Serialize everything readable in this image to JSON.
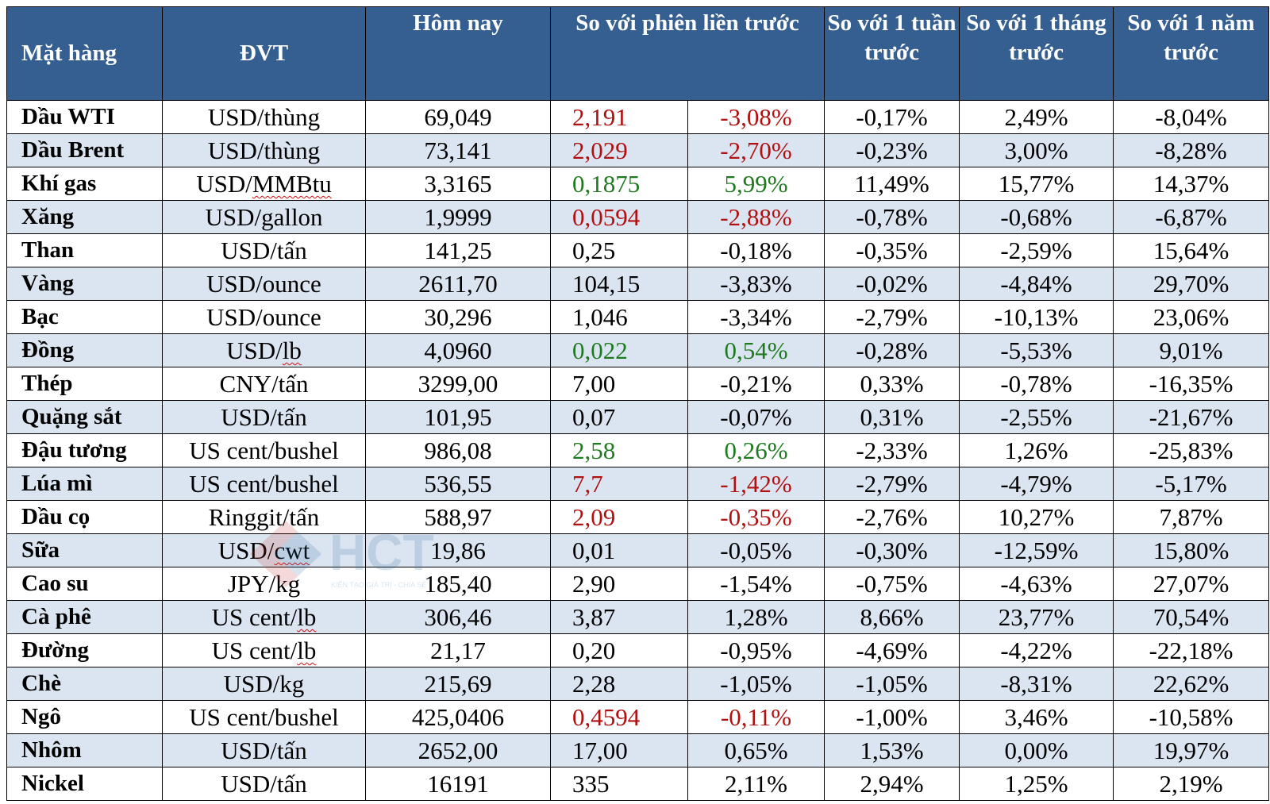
{
  "headers": {
    "commodity": "Mặt hàng",
    "unit": "ĐVT",
    "today": "Hôm nay",
    "vs_prev_session": "So với phiên liền trước",
    "vs_week": "So với 1 tuần trước",
    "vs_month": "So với 1 tháng trước",
    "vs_year": "So với 1 năm trước"
  },
  "colors": {
    "header_bg": "#365f91",
    "alt_row_bg": "#dbe5f1",
    "increase": "#1f7a1f",
    "decrease": "#b01010"
  },
  "watermark": {
    "text": "HCT",
    "tagline": "KIẾN TẠO GIÁ TRỊ - CHIA SẺ"
  },
  "rows": [
    {
      "name": "Dầu WTI",
      "unit": "USD/thùng",
      "today": "69,049",
      "change": "2,191",
      "change_pct": "-3,08%",
      "week": "-0,17%",
      "month": "2,49%",
      "year": "-8,04%",
      "trend": "neg"
    },
    {
      "name": "Dầu Brent",
      "unit": "USD/thùng",
      "today": "73,141",
      "change": "2,029",
      "change_pct": "-2,70%",
      "week": "-0,23%",
      "month": "3,00%",
      "year": "-8,28%",
      "trend": "neg"
    },
    {
      "name": "Khí gas",
      "unit": "USD/MMBtu",
      "today": "3,3165",
      "change": "0,1875",
      "change_pct": "5,99%",
      "week": "11,49%",
      "month": "15,77%",
      "year": "14,37%",
      "trend": "pos"
    },
    {
      "name": "Xăng",
      "unit": "USD/gallon",
      "today": "1,9999",
      "change": "0,0594",
      "change_pct": "-2,88%",
      "week": "-0,78%",
      "month": "-0,68%",
      "year": "-6,87%",
      "trend": "neg"
    },
    {
      "name": "Than",
      "unit": "USD/tấn",
      "today": "141,25",
      "change": "0,25",
      "change_pct": "-0,18%",
      "week": "-0,35%",
      "month": "-2,59%",
      "year": "15,64%",
      "trend": ""
    },
    {
      "name": "Vàng",
      "unit": "USD/ounce",
      "today": "2611,70",
      "change": "104,15",
      "change_pct": "-3,83%",
      "week": "-0,02%",
      "month": "-4,84%",
      "year": "29,70%",
      "trend": ""
    },
    {
      "name": "Bạc",
      "unit": "USD/ounce",
      "today": "30,296",
      "change": "1,046",
      "change_pct": "-3,34%",
      "week": "-2,79%",
      "month": "-10,13%",
      "year": "23,06%",
      "trend": ""
    },
    {
      "name": "Đồng",
      "unit": "USD/lb",
      "today": "4,0960",
      "change": "0,022",
      "change_pct": "0,54%",
      "week": "-0,28%",
      "month": "-5,53%",
      "year": "9,01%",
      "trend": "pos"
    },
    {
      "name": "Thép",
      "unit": "CNY/tấn",
      "today": "3299,00",
      "change": "7,00",
      "change_pct": "-0,21%",
      "week": "0,33%",
      "month": "-0,78%",
      "year": "-16,35%",
      "trend": ""
    },
    {
      "name": "Quặng sắt",
      "unit": "USD/tấn",
      "today": "101,95",
      "change": "0,07",
      "change_pct": "-0,07%",
      "week": "0,31%",
      "month": "-2,55%",
      "year": "-21,67%",
      "trend": ""
    },
    {
      "name": "Đậu tương",
      "unit": "US cent/bushel",
      "today": "986,08",
      "change": "2,58",
      "change_pct": "0,26%",
      "week": "-2,33%",
      "month": "1,26%",
      "year": "-25,83%",
      "trend": "pos"
    },
    {
      "name": "Lúa mì",
      "unit": "US cent/bushel",
      "today": "536,55",
      "change": "7,7",
      "change_pct": "-1,42%",
      "week": "-2,79%",
      "month": "-4,79%",
      "year": "-5,17%",
      "trend": "neg"
    },
    {
      "name": "Dầu cọ",
      "unit": "Ringgit/tấn",
      "today": "588,97",
      "change": "2,09",
      "change_pct": "-0,35%",
      "week": "-2,76%",
      "month": "10,27%",
      "year": "7,87%",
      "trend": "neg"
    },
    {
      "name": "Sữa",
      "unit": "USD/cwt",
      "today": "19,86",
      "change": "0,01",
      "change_pct": "-0,05%",
      "week": "-0,30%",
      "month": "-12,59%",
      "year": "15,80%",
      "trend": ""
    },
    {
      "name": "Cao su",
      "unit": "JPY/kg",
      "today": "185,40",
      "change": "2,90",
      "change_pct": "-1,54%",
      "week": "-0,75%",
      "month": "-4,63%",
      "year": "27,07%",
      "trend": ""
    },
    {
      "name": "Cà phê",
      "unit": "US cent/lb",
      "today": "306,46",
      "change": "3,87",
      "change_pct": "1,28%",
      "week": "8,66%",
      "month": "23,77%",
      "year": "70,54%",
      "trend": ""
    },
    {
      "name": "Đường",
      "unit": "US cent/lb",
      "today": "21,17",
      "change": "0,20",
      "change_pct": "-0,95%",
      "week": "-4,69%",
      "month": "-4,22%",
      "year": "-22,18%",
      "trend": ""
    },
    {
      "name": "Chè",
      "unit": "USD/kg",
      "today": "215,69",
      "change": "2,28",
      "change_pct": "-1,05%",
      "week": "-1,05%",
      "month": "-8,31%",
      "year": "22,62%",
      "trend": ""
    },
    {
      "name": "Ngô",
      "unit": "US cent/bushel",
      "today": "425,0406",
      "change": "0,4594",
      "change_pct": "-0,11%",
      "week": "-1,00%",
      "month": "3,46%",
      "year": "-10,58%",
      "trend": "neg"
    },
    {
      "name": "Nhôm",
      "unit": "USD/tấn",
      "today": "2652,00",
      "change": "17,00",
      "change_pct": "0,65%",
      "week": "1,53%",
      "month": "0,00%",
      "year": "19,97%",
      "trend": ""
    },
    {
      "name": "Nickel",
      "unit": "USD/tấn",
      "today": "16191",
      "change": "335",
      "change_pct": "2,11%",
      "week": "2,94%",
      "month": "1,25%",
      "year": "2,19%",
      "trend": ""
    }
  ]
}
